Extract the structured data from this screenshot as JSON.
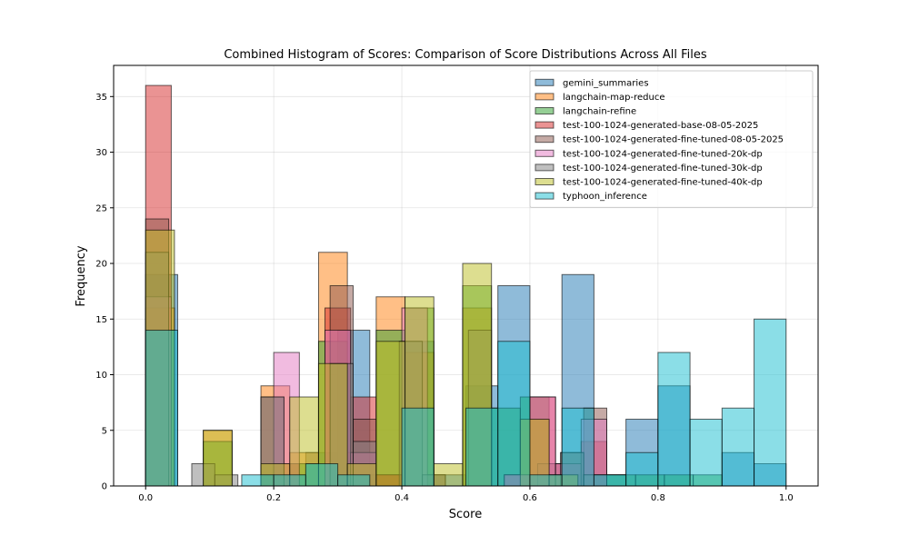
{
  "chart_data": {
    "type": "bar",
    "title": "Combined Histogram of Scores: Comparison of Score Distributions Across All Files",
    "xlabel": "Score",
    "ylabel": "Frequency",
    "xlim": [
      -0.05,
      1.05
    ],
    "ylim": [
      0,
      37.8
    ],
    "xticks": [
      0.0,
      0.2,
      0.4,
      0.6,
      0.8,
      1.0
    ],
    "xtick_labels": [
      "0.0",
      "0.2",
      "0.4",
      "0.6",
      "0.8",
      "1.0"
    ],
    "yticks": [
      0,
      5,
      10,
      15,
      20,
      25,
      30,
      35
    ],
    "ytick_labels": [
      "0",
      "5",
      "10",
      "15",
      "20",
      "25",
      "30",
      "35"
    ],
    "grid": true,
    "legend_position": "upper-right",
    "bar_alpha": 0.5,
    "series": [
      {
        "name": "gemini_summaries",
        "color": "#1f77b4",
        "bins": [
          {
            "x0": 0.0,
            "x1": 0.05,
            "count": 19
          },
          {
            "x0": 0.2,
            "x1": 0.25,
            "count": 1
          },
          {
            "x0": 0.25,
            "x1": 0.3,
            "count": 3
          },
          {
            "x0": 0.3,
            "x1": 0.35,
            "count": 14
          },
          {
            "x0": 0.35,
            "x1": 0.4,
            "count": 1
          },
          {
            "x0": 0.4,
            "x1": 0.45,
            "count": 13
          },
          {
            "x0": 0.45,
            "x1": 0.5,
            "count": 1
          },
          {
            "x0": 0.5,
            "x1": 0.55,
            "count": 9
          },
          {
            "x0": 0.55,
            "x1": 0.6,
            "count": 18
          },
          {
            "x0": 0.6,
            "x1": 0.65,
            "count": 1
          },
          {
            "x0": 0.65,
            "x1": 0.7,
            "count": 19
          },
          {
            "x0": 0.7,
            "x1": 0.75,
            "count": 1
          },
          {
            "x0": 0.75,
            "x1": 0.8,
            "count": 6
          },
          {
            "x0": 0.8,
            "x1": 0.85,
            "count": 9
          },
          {
            "x0": 0.9,
            "x1": 0.95,
            "count": 3
          },
          {
            "x0": 0.95,
            "x1": 1.0,
            "count": 2
          }
        ]
      },
      {
        "name": "langchain-map-reduce",
        "color": "#ff7f0e",
        "bins": [
          {
            "x0": 0.0,
            "x1": 0.045,
            "count": 16
          },
          {
            "x0": 0.09,
            "x1": 0.135,
            "count": 5
          },
          {
            "x0": 0.18,
            "x1": 0.225,
            "count": 9
          },
          {
            "x0": 0.225,
            "x1": 0.27,
            "count": 3
          },
          {
            "x0": 0.27,
            "x1": 0.315,
            "count": 21
          },
          {
            "x0": 0.315,
            "x1": 0.36,
            "count": 3
          },
          {
            "x0": 0.36,
            "x1": 0.405,
            "count": 17
          },
          {
            "x0": 0.405,
            "x1": 0.45,
            "count": 12
          },
          {
            "x0": 0.495,
            "x1": 0.54,
            "count": 16
          },
          {
            "x0": 0.585,
            "x1": 0.63,
            "count": 6
          },
          {
            "x0": 0.63,
            "x1": 0.675,
            "count": 1
          }
        ]
      },
      {
        "name": "langchain-refine",
        "color": "#2ca02c",
        "bins": [
          {
            "x0": 0.0,
            "x1": 0.045,
            "count": 14
          },
          {
            "x0": 0.09,
            "x1": 0.135,
            "count": 4
          },
          {
            "x0": 0.18,
            "x1": 0.225,
            "count": 1
          },
          {
            "x0": 0.225,
            "x1": 0.27,
            "count": 2
          },
          {
            "x0": 0.27,
            "x1": 0.315,
            "count": 13
          },
          {
            "x0": 0.315,
            "x1": 0.36,
            "count": 1
          },
          {
            "x0": 0.36,
            "x1": 0.405,
            "count": 14
          },
          {
            "x0": 0.405,
            "x1": 0.45,
            "count": 16
          },
          {
            "x0": 0.495,
            "x1": 0.54,
            "count": 18
          },
          {
            "x0": 0.54,
            "x1": 0.585,
            "count": 7
          },
          {
            "x0": 0.585,
            "x1": 0.63,
            "count": 8
          },
          {
            "x0": 0.63,
            "x1": 0.675,
            "count": 1
          },
          {
            "x0": 0.675,
            "x1": 0.72,
            "count": 1
          },
          {
            "x0": 0.72,
            "x1": 0.765,
            "count": 1
          },
          {
            "x0": 0.765,
            "x1": 0.81,
            "count": 1
          },
          {
            "x0": 0.81,
            "x1": 0.855,
            "count": 1
          },
          {
            "x0": 0.855,
            "x1": 0.9,
            "count": 1
          }
        ]
      },
      {
        "name": "test-100-1024-generated-base-08-05-2025",
        "color": "#d62728",
        "bins": [
          {
            "x0": 0.0,
            "x1": 0.04,
            "count": 36
          },
          {
            "x0": 0.2,
            "x1": 0.24,
            "count": 2
          },
          {
            "x0": 0.28,
            "x1": 0.32,
            "count": 16
          },
          {
            "x0": 0.32,
            "x1": 0.36,
            "count": 8
          },
          {
            "x0": 0.36,
            "x1": 0.4,
            "count": 1
          },
          {
            "x0": 0.56,
            "x1": 0.6,
            "count": 1
          },
          {
            "x0": 0.6,
            "x1": 0.64,
            "count": 8
          },
          {
            "x0": 0.64,
            "x1": 0.68,
            "count": 2
          },
          {
            "x0": 0.68,
            "x1": 0.72,
            "count": 4
          }
        ]
      },
      {
        "name": "test-100-1024-generated-fine-tuned-08-05-2025",
        "color": "#8c564b",
        "bins": [
          {
            "x0": 0.0,
            "x1": 0.036,
            "count": 24
          },
          {
            "x0": 0.18,
            "x1": 0.216,
            "count": 8
          },
          {
            "x0": 0.288,
            "x1": 0.324,
            "count": 18
          },
          {
            "x0": 0.324,
            "x1": 0.36,
            "count": 6
          },
          {
            "x0": 0.432,
            "x1": 0.468,
            "count": 1
          },
          {
            "x0": 0.612,
            "x1": 0.648,
            "count": 2
          },
          {
            "x0": 0.648,
            "x1": 0.684,
            "count": 3
          },
          {
            "x0": 0.684,
            "x1": 0.72,
            "count": 7
          }
        ]
      },
      {
        "name": "test-100-1024-generated-fine-tuned-20k-dp",
        "color": "#e377c2",
        "bins": [
          {
            "x0": 0.0,
            "x1": 0.04,
            "count": 17
          },
          {
            "x0": 0.2,
            "x1": 0.24,
            "count": 12
          },
          {
            "x0": 0.28,
            "x1": 0.32,
            "count": 14
          },
          {
            "x0": 0.32,
            "x1": 0.36,
            "count": 3
          },
          {
            "x0": 0.4,
            "x1": 0.44,
            "count": 16
          },
          {
            "x0": 0.56,
            "x1": 0.6,
            "count": 1
          },
          {
            "x0": 0.6,
            "x1": 0.64,
            "count": 8
          },
          {
            "x0": 0.64,
            "x1": 0.68,
            "count": 2
          },
          {
            "x0": 0.68,
            "x1": 0.72,
            "count": 6
          }
        ]
      },
      {
        "name": "test-100-1024-generated-fine-tuned-30k-dp",
        "color": "#7f7f7f",
        "bins": [
          {
            "x0": 0.0,
            "x1": 0.036,
            "count": 21
          },
          {
            "x0": 0.072,
            "x1": 0.108,
            "count": 2
          },
          {
            "x0": 0.108,
            "x1": 0.144,
            "count": 1
          },
          {
            "x0": 0.18,
            "x1": 0.216,
            "count": 8
          },
          {
            "x0": 0.288,
            "x1": 0.324,
            "count": 11
          },
          {
            "x0": 0.324,
            "x1": 0.36,
            "count": 4
          },
          {
            "x0": 0.396,
            "x1": 0.432,
            "count": 13
          },
          {
            "x0": 0.432,
            "x1": 0.468,
            "count": 1
          },
          {
            "x0": 0.504,
            "x1": 0.54,
            "count": 14
          },
          {
            "x0": 0.648,
            "x1": 0.684,
            "count": 3
          },
          {
            "x0": 0.684,
            "x1": 0.72,
            "count": 1
          }
        ]
      },
      {
        "name": "test-100-1024-generated-fine-tuned-40k-dp",
        "color": "#bcbd22",
        "bins": [
          {
            "x0": 0.0,
            "x1": 0.045,
            "count": 23
          },
          {
            "x0": 0.09,
            "x1": 0.135,
            "count": 5
          },
          {
            "x0": 0.18,
            "x1": 0.225,
            "count": 2
          },
          {
            "x0": 0.225,
            "x1": 0.27,
            "count": 8
          },
          {
            "x0": 0.27,
            "x1": 0.315,
            "count": 11
          },
          {
            "x0": 0.315,
            "x1": 0.36,
            "count": 2
          },
          {
            "x0": 0.36,
            "x1": 0.405,
            "count": 13
          },
          {
            "x0": 0.405,
            "x1": 0.45,
            "count": 17
          },
          {
            "x0": 0.45,
            "x1": 0.495,
            "count": 2
          },
          {
            "x0": 0.495,
            "x1": 0.54,
            "count": 20
          },
          {
            "x0": 0.585,
            "x1": 0.63,
            "count": 6
          },
          {
            "x0": 0.63,
            "x1": 0.675,
            "count": 1
          }
        ]
      },
      {
        "name": "typhoon_inference",
        "color": "#17becf",
        "bins": [
          {
            "x0": 0.0,
            "x1": 0.05,
            "count": 14
          },
          {
            "x0": 0.15,
            "x1": 0.2,
            "count": 1
          },
          {
            "x0": 0.2,
            "x1": 0.25,
            "count": 1
          },
          {
            "x0": 0.25,
            "x1": 0.3,
            "count": 2
          },
          {
            "x0": 0.3,
            "x1": 0.35,
            "count": 1
          },
          {
            "x0": 0.4,
            "x1": 0.45,
            "count": 7
          },
          {
            "x0": 0.5,
            "x1": 0.55,
            "count": 7
          },
          {
            "x0": 0.55,
            "x1": 0.6,
            "count": 13
          },
          {
            "x0": 0.6,
            "x1": 0.65,
            "count": 1
          },
          {
            "x0": 0.65,
            "x1": 0.7,
            "count": 7
          },
          {
            "x0": 0.7,
            "x1": 0.75,
            "count": 1
          },
          {
            "x0": 0.75,
            "x1": 0.8,
            "count": 3
          },
          {
            "x0": 0.8,
            "x1": 0.85,
            "count": 12
          },
          {
            "x0": 0.85,
            "x1": 0.9,
            "count": 6
          },
          {
            "x0": 0.9,
            "x1": 0.95,
            "count": 7
          },
          {
            "x0": 0.95,
            "x1": 1.0,
            "count": 15
          }
        ]
      }
    ]
  }
}
